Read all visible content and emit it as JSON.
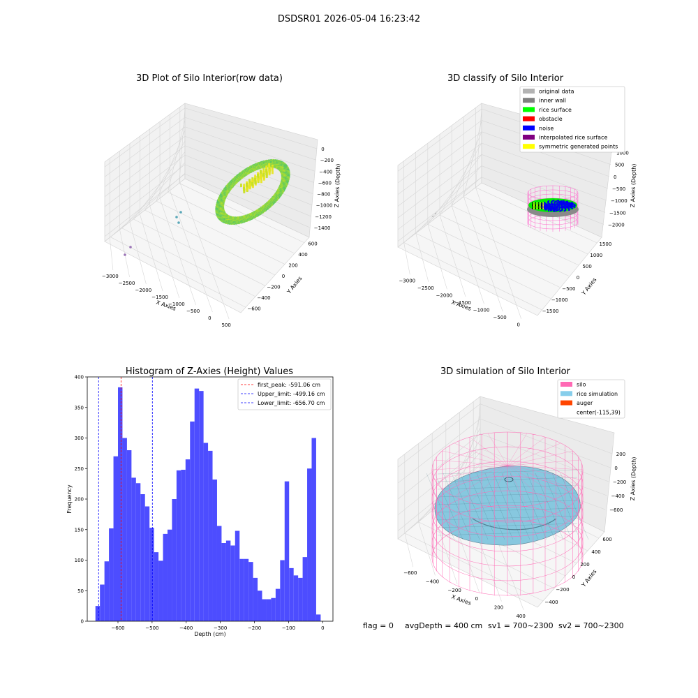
{
  "figure": {
    "suptitle": "DSDSR01 2026-05-04 16:23:42",
    "footer": {
      "flag": "flag = 0",
      "avg_depth": "avgDepth = 400 cm",
      "sv1": "sv1 = 700~2300",
      "sv2": "sv2 = 700~2300"
    }
  },
  "chart_data": [
    {
      "type": "scatter",
      "projection": "3d",
      "title": "3D Plot of Silo Interior(row data)",
      "xlabel": "X Axies",
      "ylabel": "Y Axies",
      "zlabel": "Z Axies (Depth)",
      "x_ticks": [
        "−3000",
        "−2500",
        "−2000",
        "−1500",
        "−1000",
        "−500",
        "0",
        "500"
      ],
      "y_ticks": [
        "−600",
        "−400",
        "−200",
        "0",
        "200",
        "400",
        "600"
      ],
      "z_ticks": [
        "0",
        "−200",
        "−400",
        "−600",
        "−800",
        "−1000",
        "−1200",
        "−1400"
      ],
      "colormap": "viridis-like",
      "outlier_points_colors": [
        "#9a73b5",
        "#9a73b5",
        "#5aa7b8",
        "#5aa7b8",
        "#5aa7b8"
      ]
    },
    {
      "type": "scatter",
      "projection": "3d",
      "title": "3D classify of Silo Interior",
      "xlabel": "X Axies",
      "ylabel": "Y Axies",
      "zlabel": "Z Axies (Depth)",
      "x_ticks": [
        "−3000",
        "−2500",
        "−2000",
        "−1500",
        "−1000",
        "−500",
        "0"
      ],
      "y_ticks": [
        "−1500",
        "−1000",
        "−500",
        "0",
        "500",
        "1000",
        "1500"
      ],
      "z_ticks": [
        "1000",
        "500",
        "0",
        "−500",
        "−1000",
        "−1500",
        "−2000"
      ],
      "legend_position": "top-right",
      "legend": [
        {
          "label": "original data",
          "color": "#b3b3b3"
        },
        {
          "label": "inner wall",
          "color": "#808080"
        },
        {
          "label": "rice surface",
          "color": "#00ff00"
        },
        {
          "label": "obstacle",
          "color": "#ff0000"
        },
        {
          "label": "noise",
          "color": "#0000ff"
        },
        {
          "label": "interpolated rice surface",
          "color": "#800080"
        },
        {
          "label": "symmetric generated points",
          "color": "#ffff00"
        }
      ]
    },
    {
      "type": "bar",
      "subtype": "histogram",
      "title": "Histogram of Z-Axies (Height) Values",
      "xlabel": "Depth (cm)",
      "ylabel": "Frequency",
      "xlim": [
        -690,
        30
      ],
      "ylim": [
        0,
        400
      ],
      "x_ticks": [
        -600,
        -500,
        -400,
        -300,
        -200,
        -100,
        0
      ],
      "y_ticks": [
        0,
        50,
        100,
        150,
        200,
        250,
        300,
        350,
        400
      ],
      "bar_color": "#4d4dff",
      "bin_start": -666,
      "bin_width": 13.2,
      "values": [
        25,
        60,
        98,
        152,
        270,
        383,
        300,
        280,
        235,
        226,
        208,
        188,
        153,
        113,
        99,
        143,
        150,
        200,
        247,
        248,
        265,
        327,
        381,
        377,
        292,
        279,
        232,
        156,
        128,
        132,
        124,
        148,
        102,
        102,
        97,
        71,
        50,
        36,
        36,
        38,
        53,
        100,
        229,
        87,
        75,
        71,
        105,
        250,
        300,
        11
      ],
      "lines": [
        {
          "label": "first_peak: -591.06 cm",
          "x": -591.06,
          "color": "#ff0000"
        },
        {
          "label": "Upper_limit: -499.16 cm",
          "x": -499.16,
          "color": "#0000ff"
        },
        {
          "label": "Lower_limit: -656.70 cm",
          "x": -656.7,
          "color": "#0000ff"
        }
      ],
      "legend_position": "top-right"
    },
    {
      "type": "area",
      "projection": "3d",
      "title": "3D simulation of Silo Interior",
      "xlabel": "X Axies",
      "ylabel": "Y Axies",
      "zlabel": "Z Axies (Depth)",
      "x_ticks": [
        "−600",
        "−400",
        "−200",
        "0",
        "200",
        "400"
      ],
      "y_ticks": [
        "−400",
        "−200",
        "0",
        "200",
        "400",
        "600"
      ],
      "z_ticks": [
        "200",
        "0",
        "−200",
        "−400",
        "−600"
      ],
      "legend_position": "top-right",
      "legend": [
        {
          "label": "silo",
          "color": "#ff69b4"
        },
        {
          "label": "rice simulation",
          "color": "#87ceeb"
        },
        {
          "label": "auger",
          "color": "#ff4500"
        },
        {
          "label": "center(-115,39)",
          "color": ""
        }
      ]
    }
  ]
}
